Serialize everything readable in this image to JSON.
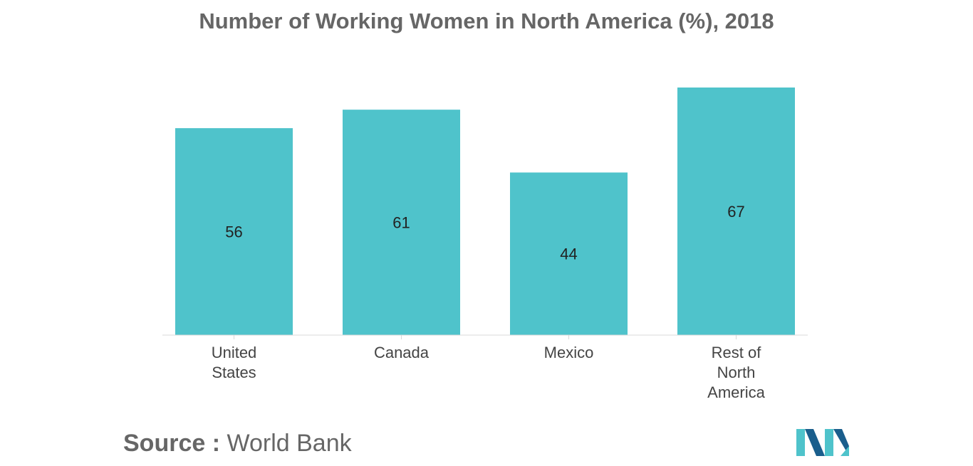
{
  "chart_data": {
    "type": "bar",
    "title": "Number of Working Women in North America (%), 2018",
    "categories": [
      [
        "United",
        "States"
      ],
      [
        "Canada"
      ],
      [
        "Mexico"
      ],
      [
        "Rest of",
        "North",
        "America"
      ]
    ],
    "values": [
      56,
      61,
      44,
      67
    ],
    "data_labels": [
      "56",
      "61",
      "44",
      "67"
    ],
    "xlabel": "",
    "ylabel": "",
    "ylim": [
      0,
      67
    ],
    "grid": false,
    "legend": "none",
    "bar_color": "#4FC3CB"
  },
  "source": {
    "label": "Source :",
    "value": "World Bank"
  },
  "logo": {
    "icon": "mordor-intelligence-logo-icon",
    "colors": [
      "#1A5E8C",
      "#4FC3CB"
    ]
  }
}
